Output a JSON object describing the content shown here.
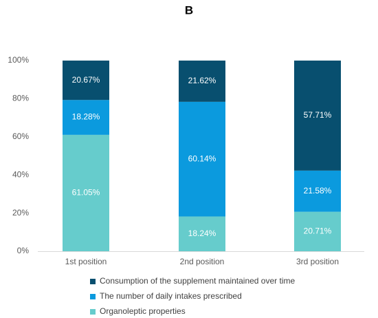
{
  "panel_label": "B",
  "chart_data": {
    "type": "bar",
    "stacked": true,
    "title": "B",
    "categories": [
      "1st position",
      "2nd position",
      "3rd position"
    ],
    "series": [
      {
        "name": "Organoleptic properties",
        "color": "#66cccc",
        "values": [
          61.05,
          18.24,
          20.71
        ],
        "labels": [
          "61.05%",
          "18.24%",
          "20.71%"
        ]
      },
      {
        "name": "The number of daily intakes prescribed",
        "color": "#0b9ade",
        "values": [
          18.28,
          60.14,
          21.58
        ],
        "labels": [
          "18.28%",
          "60.14%",
          "21.58%"
        ]
      },
      {
        "name": "Consumption of the supplement maintained over time",
        "color": "#084f6f",
        "values": [
          20.67,
          21.62,
          57.71
        ],
        "labels": [
          "20.67%",
          "21.62%",
          "57.71%"
        ]
      }
    ],
    "ylim": [
      0,
      100
    ],
    "yticks": [
      0,
      20,
      40,
      60,
      80,
      100
    ],
    "ytick_labels": [
      "0%",
      "20%",
      "40%",
      "60%",
      "80%",
      "100%"
    ],
    "xlabel": "",
    "ylabel": "",
    "grid": false,
    "legend": {
      "placement": "bottom",
      "order": [
        "Consumption of the supplement maintained over time",
        "The number of daily intakes prescribed",
        "Organoleptic properties"
      ]
    }
  }
}
